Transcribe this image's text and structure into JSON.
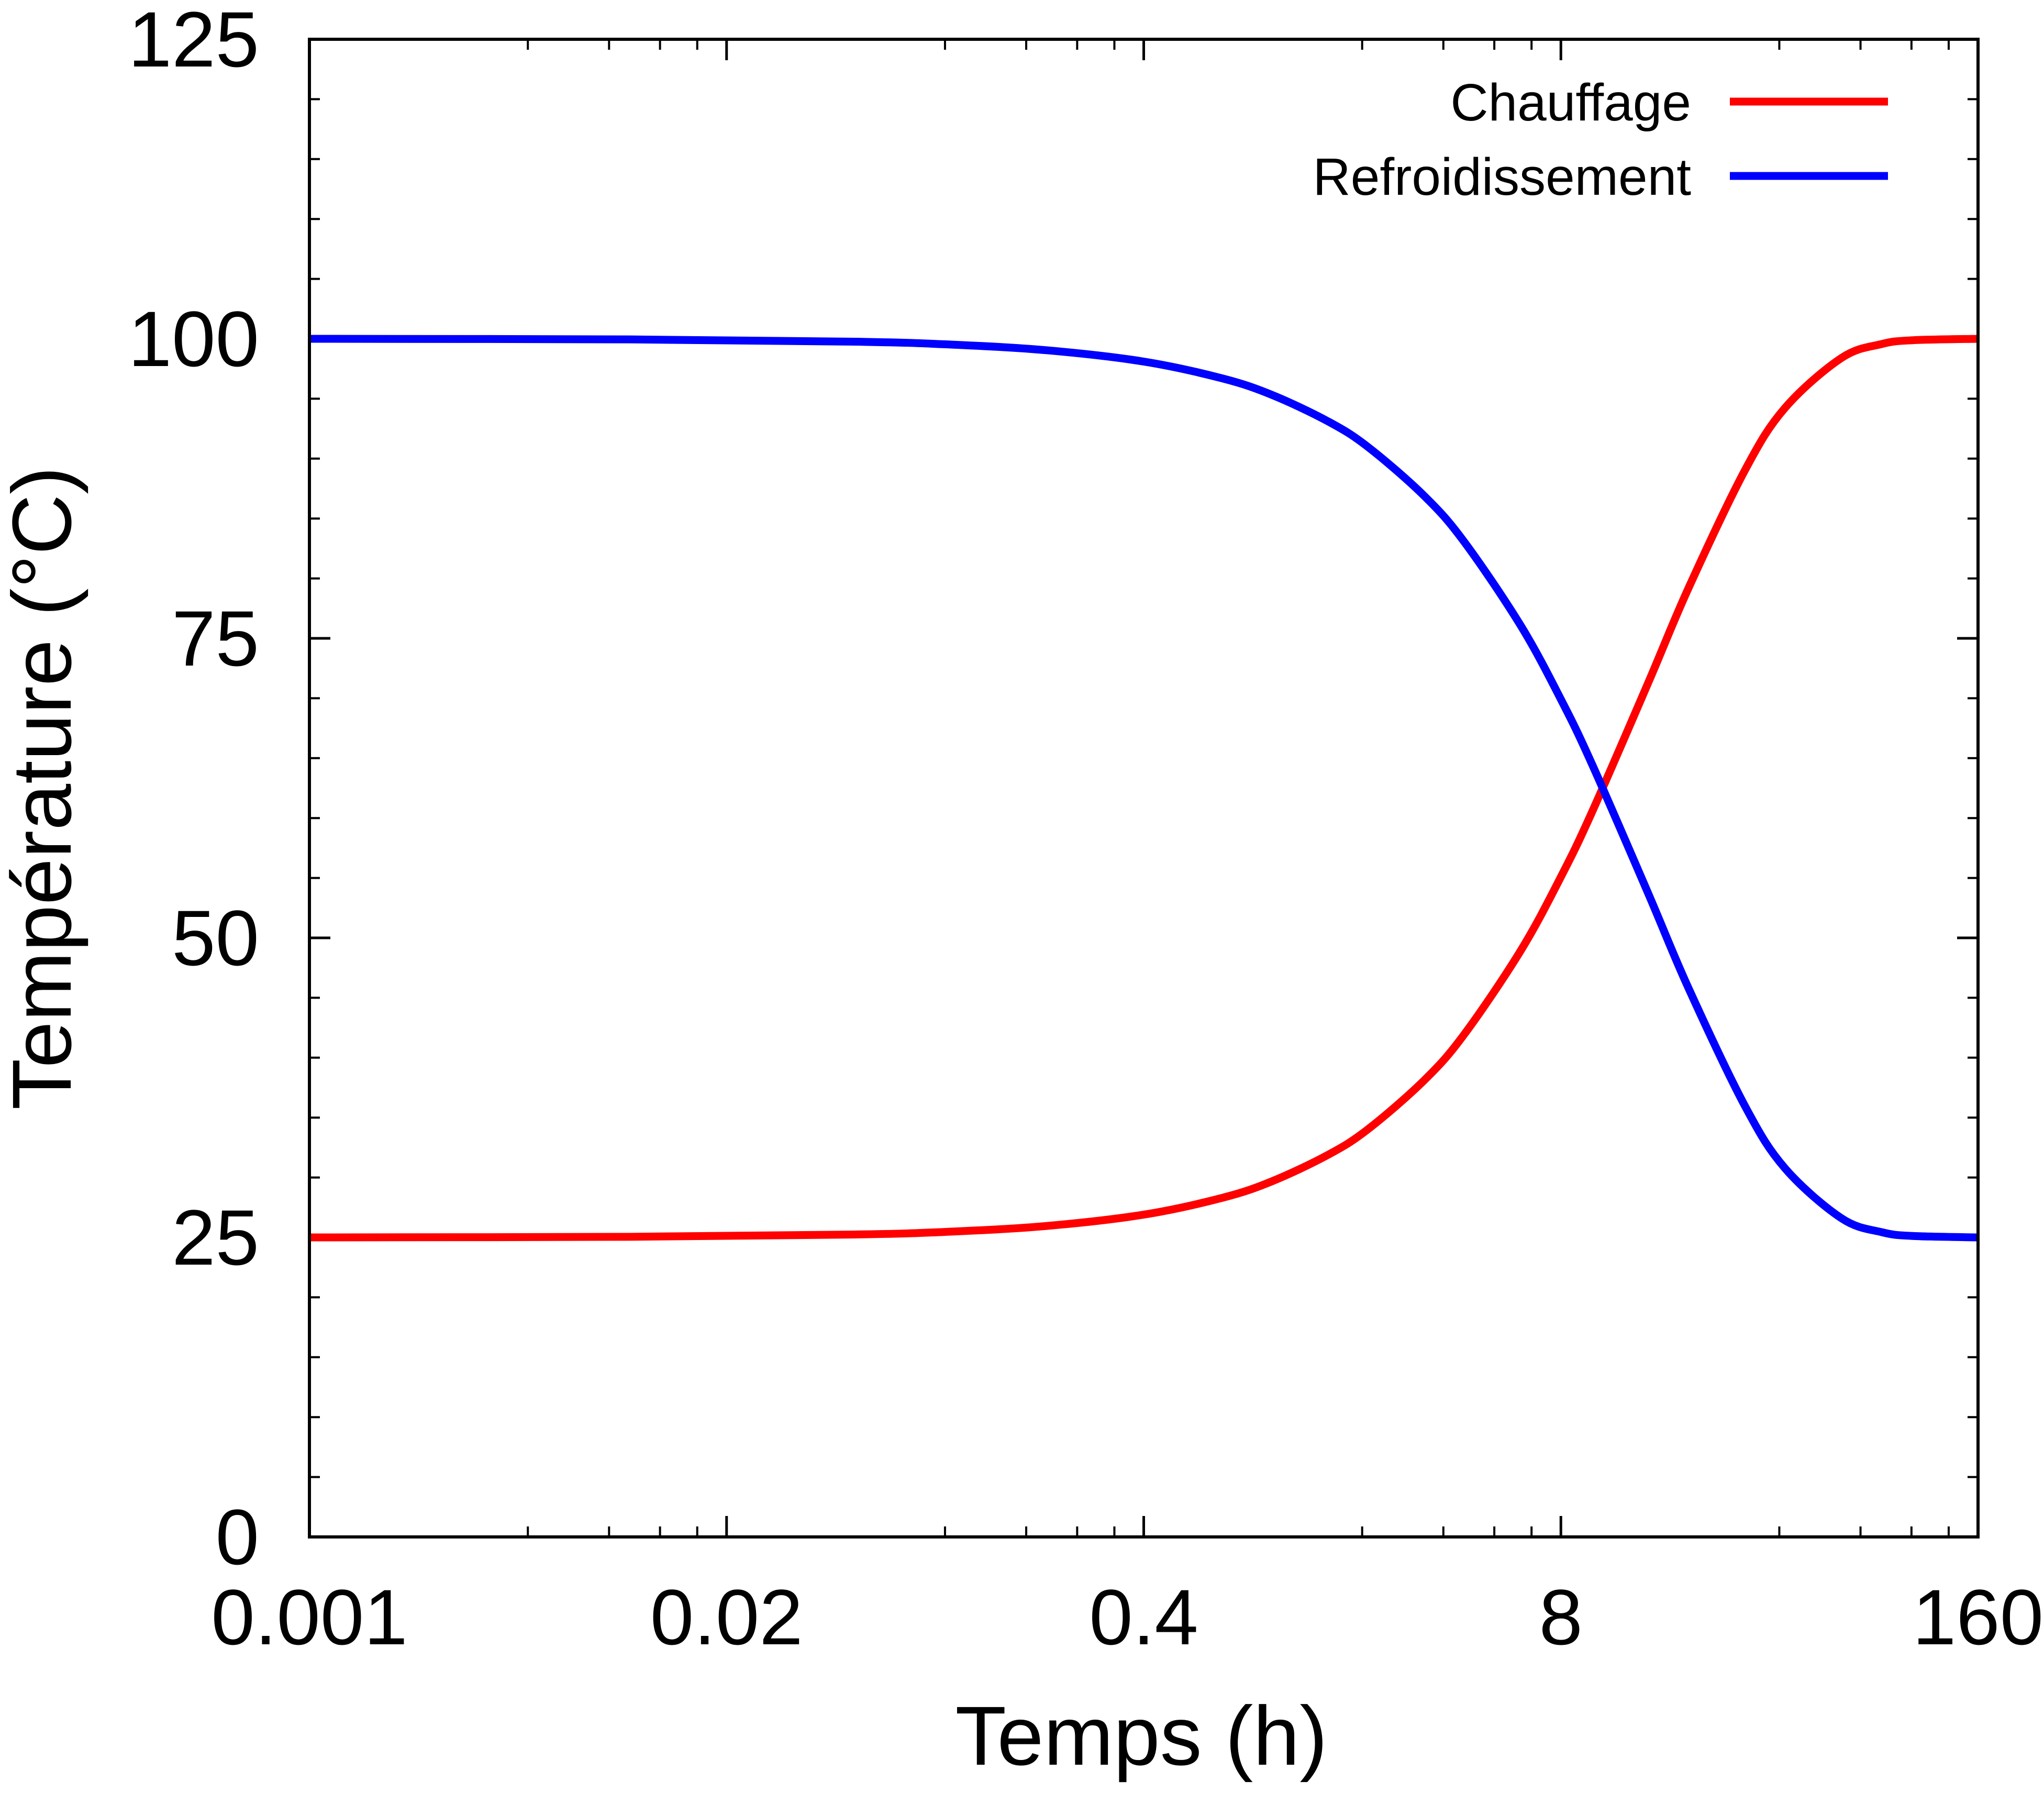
{
  "chart_data": {
    "type": "line",
    "title": "",
    "xlabel": "Temps (h)",
    "ylabel": "Température (°C)",
    "x_scale": "log",
    "xlim": [
      0.001,
      160
    ],
    "ylim": [
      0,
      125
    ],
    "x_ticks": [
      0.001,
      0.02,
      0.4,
      8,
      160
    ],
    "x_tick_labels": [
      "0.001",
      "0.02",
      "0.4",
      "8",
      "160"
    ],
    "y_ticks": [
      0,
      25,
      50,
      75,
      100,
      125
    ],
    "y_tick_labels": [
      "0",
      "25",
      "50",
      "75",
      "100",
      "125"
    ],
    "grid": false,
    "legend_position": "top-right",
    "x": [
      0.001,
      0.01,
      0.05,
      0.1,
      0.2,
      0.4,
      0.7,
      1,
      1.5,
      2,
      3,
      4,
      6,
      8,
      10,
      15,
      20,
      30,
      40,
      60,
      80,
      100,
      160
    ],
    "series": [
      {
        "name": "Chauffage",
        "color": "#ff0000",
        "values": [
          25.0,
          25.05,
          25.24,
          25.48,
          25.96,
          26.9,
          28.29,
          29.66,
          31.88,
          34.02,
          38.12,
          41.96,
          48.95,
          55.09,
          60.49,
          71.33,
          79.19,
          89.03,
          94.23,
          98.4,
          99.56,
          99.88,
          100.0
        ]
      },
      {
        "name": "Refroidissement",
        "color": "#0000ff",
        "values": [
          100.0,
          99.95,
          99.76,
          99.52,
          99.04,
          98.1,
          96.71,
          95.34,
          93.12,
          90.98,
          86.88,
          83.04,
          76.05,
          69.91,
          64.51,
          53.67,
          45.81,
          35.97,
          30.77,
          26.6,
          25.44,
          25.12,
          25.0
        ]
      }
    ]
  }
}
